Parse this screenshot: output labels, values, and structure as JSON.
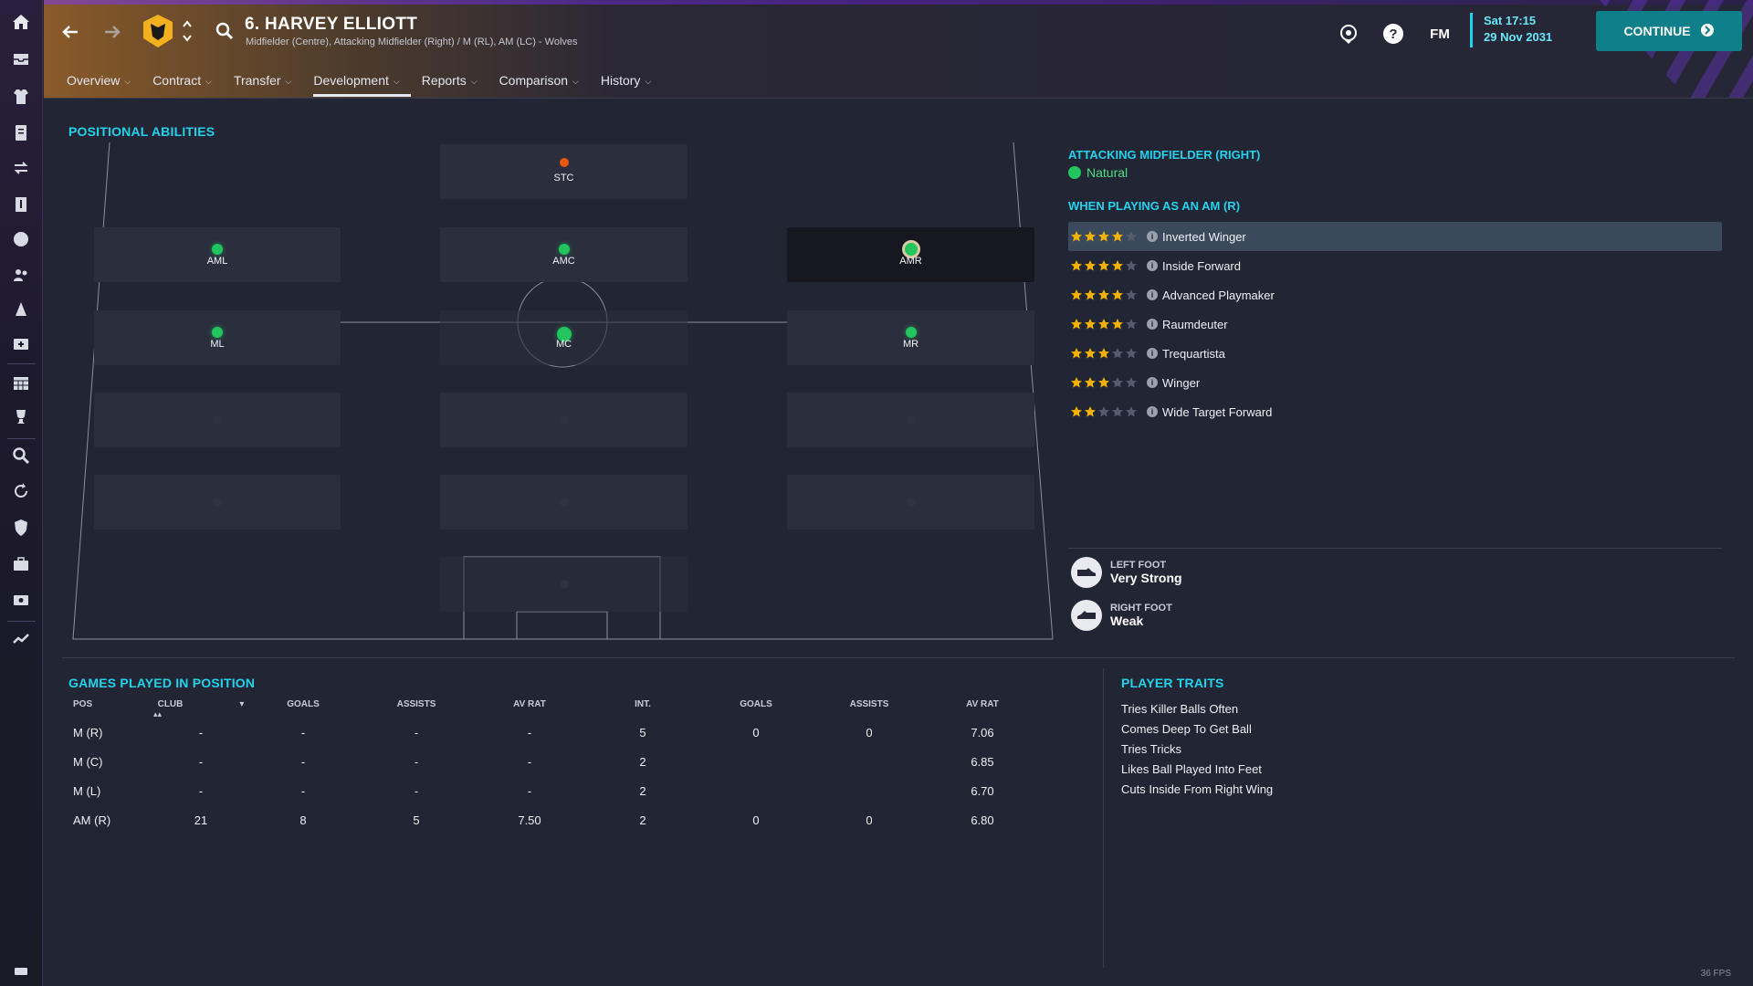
{
  "header": {
    "player_title": "6. HARVEY ELLIOTT",
    "player_subtitle": "Midfielder (Centre), Attacking Midfielder (Right) / M (RL), AM (LC) - Wolves",
    "fm_label": "FM",
    "date_line1": "Sat 17:15",
    "date_line2": "29 Nov 2031",
    "continue_label": "CONTINUE",
    "tabs": [
      {
        "label": "Overview"
      },
      {
        "label": "Contract"
      },
      {
        "label": "Transfer"
      },
      {
        "label": "Development",
        "active": true
      },
      {
        "label": "Reports"
      },
      {
        "label": "Comparison"
      },
      {
        "label": "History"
      }
    ]
  },
  "positional": {
    "title": "POSITIONAL ABILITIES",
    "positions": [
      {
        "code": "STC",
        "rating": "orange"
      },
      {
        "code": "AML",
        "rating": "green"
      },
      {
        "code": "AMC",
        "rating": "green"
      },
      {
        "code": "AMR",
        "rating": "green-selected"
      },
      {
        "code": "ML",
        "rating": "green"
      },
      {
        "code": "MC",
        "rating": "green"
      },
      {
        "code": "MR",
        "rating": "green"
      }
    ]
  },
  "role_panel": {
    "position_title": "ATTACKING MIDFIELDER (RIGHT)",
    "familiarity": "Natural",
    "roles_heading": "WHEN PLAYING AS AN AM (R)",
    "roles": [
      {
        "name": "Inverted Winger",
        "stars": 4,
        "selected": true
      },
      {
        "name": "Inside Forward",
        "stars": 4
      },
      {
        "name": "Advanced Playmaker",
        "stars": 4
      },
      {
        "name": "Raumdeuter",
        "stars": 4
      },
      {
        "name": "Trequartista",
        "stars": 3
      },
      {
        "name": "Winger",
        "stars": 3
      },
      {
        "name": "Wide Target Forward",
        "stars": 2
      }
    ],
    "left_foot_label": "LEFT FOOT",
    "left_foot_value": "Very Strong",
    "right_foot_label": "RIGHT FOOT",
    "right_foot_value": "Weak"
  },
  "games": {
    "title": "GAMES PLAYED IN POSITION",
    "headers": [
      "POS",
      "CLUB",
      "GOALS",
      "ASSISTS",
      "AV RAT",
      "INT.",
      "GOALS",
      "ASSISTS",
      "AV RAT"
    ],
    "rows": [
      [
        "M (R)",
        "-",
        "-",
        "-",
        "-",
        "5",
        "0",
        "0",
        "7.06"
      ],
      [
        "M (C)",
        "-",
        "-",
        "-",
        "-",
        "2",
        "",
        "",
        "6.85"
      ],
      [
        "M (L)",
        "-",
        "-",
        "-",
        "-",
        "2",
        "",
        "",
        "6.70"
      ],
      [
        "AM (R)",
        "21",
        "8",
        "5",
        "7.50",
        "2",
        "0",
        "0",
        "6.80"
      ]
    ]
  },
  "traits": {
    "title": "PLAYER TRAITS",
    "items": [
      "Tries Killer Balls Often",
      "Comes Deep To Get Ball",
      "Tries Tricks",
      "Likes Ball Played Into Feet",
      "Cuts Inside From Right Wing"
    ]
  },
  "status": {
    "fps": "36 FPS"
  },
  "colors": {
    "accent": "#22d3ee",
    "natural": "#22c55e",
    "star": "#f5b301",
    "continue": "#0f7f8a"
  }
}
